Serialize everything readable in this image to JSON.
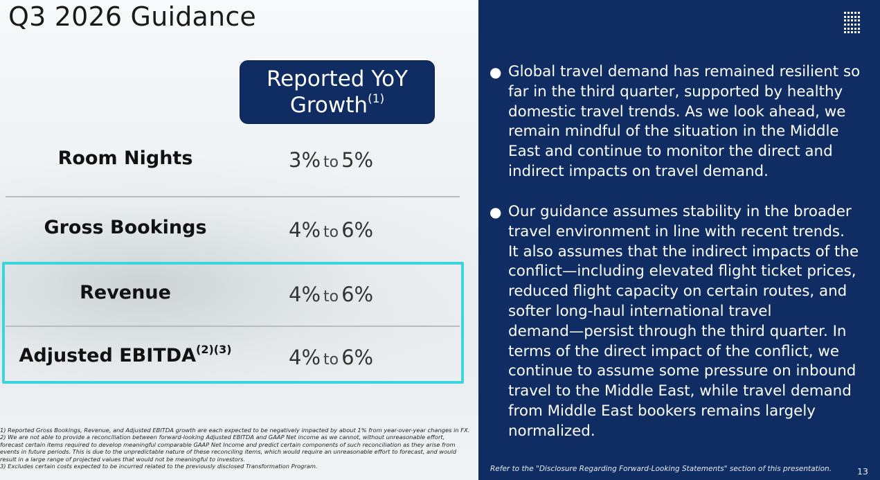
{
  "slide": {
    "title": "Q3 2026 Guidance",
    "column_header_line1": "Reported YoY",
    "column_header_line2": "Growth",
    "column_header_note": "(1)"
  },
  "rows": [
    {
      "label": "Room Nights",
      "label_note": "",
      "low": "3%",
      "to": "to",
      "high": "5%"
    },
    {
      "label": "Gross Bookings",
      "label_note": "",
      "low": "4%",
      "to": "to",
      "high": "6%"
    },
    {
      "label": "Revenue",
      "label_note": "",
      "low": "4%",
      "to": "to",
      "high": "6%"
    },
    {
      "label": "Adjusted EBITDA",
      "label_note": "(2)(3)",
      "low": "4%",
      "to": "to",
      "high": "6%"
    }
  ],
  "footnotes": [
    "1) Reported Gross Bookings, Revenue, and Adjusted EBITDA growth are each expected to be negatively impacted by about 1% from year-over-year changes in FX.",
    "2) We are not able to provide a reconciliation between forward-looking Adjusted EBITDA and GAAP Net income as we cannot, without unreasonable effort,",
    "forecast certain items required to develop meaningful comparable GAAP Net Income and predict certain components of such reconciliation as they arise from",
    "events in future periods. This is due to the unpredictable nature of these reconciling items, which would require an unreasonable effort to forecast, and would",
    "result in a large range of projected values that would not be meaningful to investors.",
    "3) Excludes certain costs expected to be incurred related to the previously disclosed Transformation Program."
  ],
  "commentary": {
    "bullet_symbol": "●",
    "bullets": [
      [
        "Global travel demand has remained resilient so",
        "far in the third quarter, supported by healthy",
        "domestic travel trends. As we look ahead, we",
        "remain mindful of the situation in the Middle",
        "East and continue to monitor the direct and",
        "indirect impacts on travel demand."
      ],
      [
        "Our guidance assumes stability in the broader",
        "travel environment in line with recent trends.",
        "It also assumes that the indirect impacts of the",
        "conflict—including elevated flight ticket prices,",
        "reduced flight capacity on certain routes, and",
        "softer long-haul international travel",
        "demand—persist through the third quarter. In",
        "terms of the direct impact of the conflict, we",
        "continue to assume some pressure on inbound",
        "travel to the Middle East, while travel demand",
        "from Middle East bookers remains largely",
        "normalized."
      ]
    ]
  },
  "footer": {
    "disclaimer": "Refer to the \"Disclosure Regarding Forward-Looking Statements\" section of this presentation.",
    "page_number": "13"
  },
  "colors": {
    "navy": "#0f2d63",
    "highlight": "#3ad6dc"
  }
}
